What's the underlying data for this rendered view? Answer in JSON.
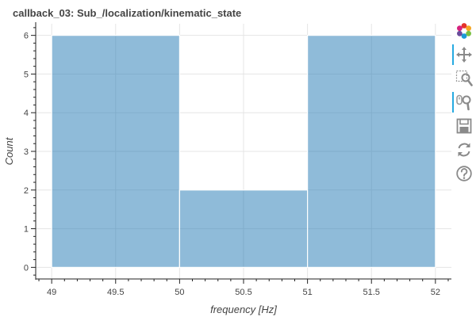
{
  "chart_data": {
    "type": "bar",
    "title": "callback_03: Sub_/localization/kinematic_state",
    "xlabel": "frequency [Hz]",
    "ylabel": "Count",
    "xlim": [
      48.875,
      52.125
    ],
    "ylim": [
      -0.3,
      6.3
    ],
    "x_ticks": [
      "49",
      "49.5",
      "50",
      "50.5",
      "51",
      "51.5",
      "52"
    ],
    "y_ticks": [
      "0",
      "1",
      "2",
      "3",
      "4",
      "5",
      "6"
    ],
    "bins": [
      {
        "left": 49,
        "right": 50,
        "count": 6
      },
      {
        "left": 50,
        "right": 51,
        "count": 2
      },
      {
        "left": 51,
        "right": 52,
        "count": 6
      }
    ],
    "bar_color": "#1f77b4",
    "grid": true
  },
  "toolbar": {
    "tools": [
      {
        "name": "bokeh-logo-icon",
        "active": false
      },
      {
        "name": "pan-icon",
        "active": true
      },
      {
        "name": "box-zoom-icon",
        "active": false
      },
      {
        "name": "wheel-zoom-icon",
        "active": true
      },
      {
        "name": "save-icon",
        "active": false
      },
      {
        "name": "reset-icon",
        "active": false
      },
      {
        "name": "help-icon",
        "active": false
      }
    ]
  }
}
